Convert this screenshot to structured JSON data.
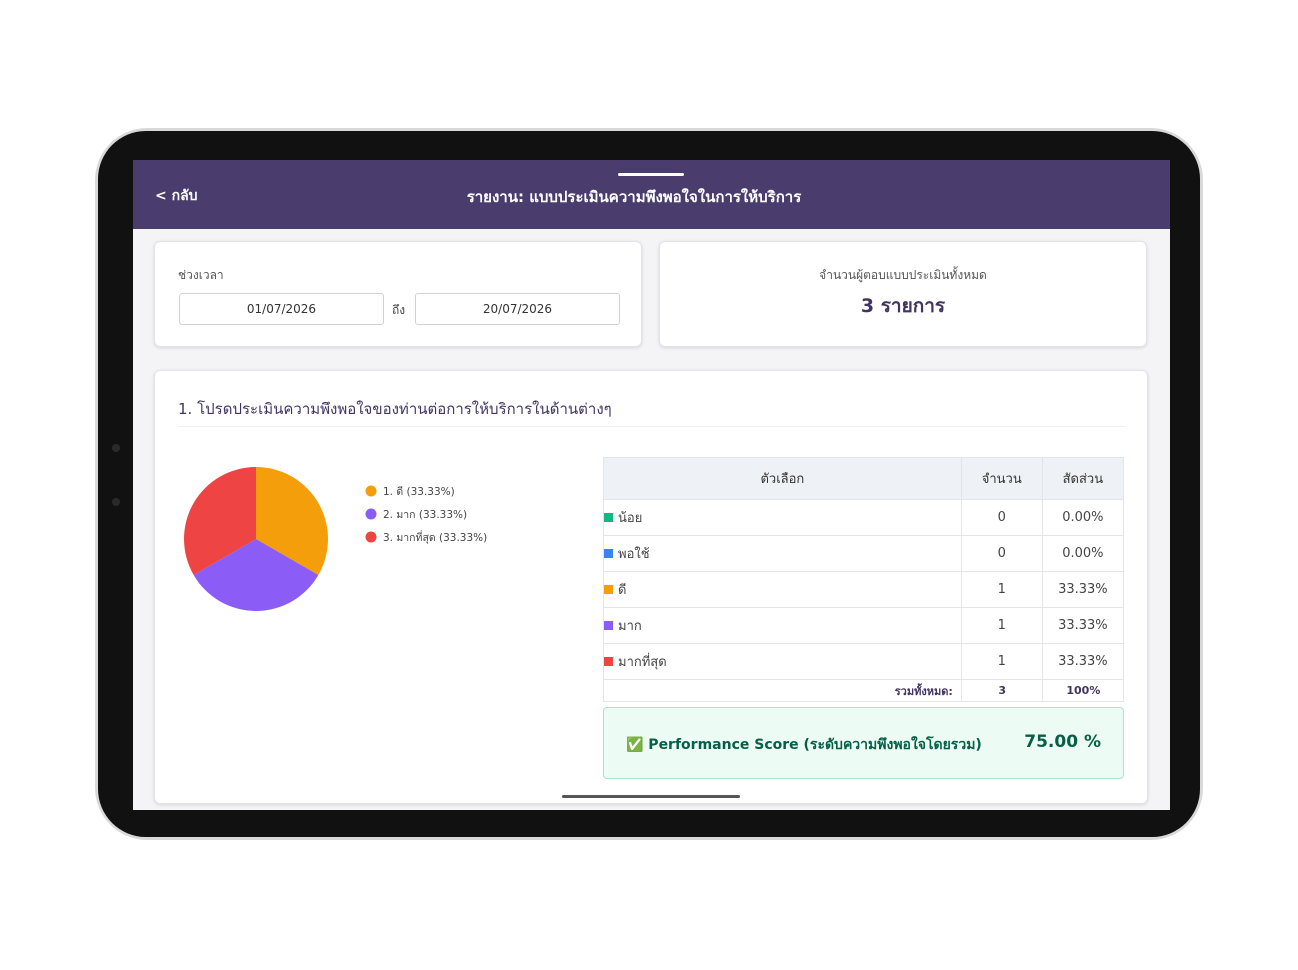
{
  "header": {
    "back": "< กลับ",
    "title": "รายงาน: แบบประเมินความพึงพอใจในการให้บริการ"
  },
  "period": {
    "label": "ช่วงเวลา",
    "from": "01/07/2026",
    "to_label": "ถึง",
    "to": "20/07/2026"
  },
  "respondents": {
    "label": "จำนวนผู้ตอบแบบประเมินทั้งหมด",
    "value": "3 รายการ"
  },
  "question": {
    "title": "1. โปรดประเมินความพึงพอใจของท่านต่อการให้บริการในด้านต่างๆ"
  },
  "chart_data": {
    "type": "pie",
    "categories": [
      "1. ดี (33.33%)",
      "2. มาก (33.33%)",
      "3. มากที่สุด (33.33%)"
    ],
    "values": [
      33.33,
      33.33,
      33.33
    ],
    "colors": [
      "#f59e0b",
      "#8b5cf6",
      "#ef4444"
    ]
  },
  "table": {
    "headers": [
      "ตัวเลือก",
      "จำนวน",
      "สัดส่วน"
    ],
    "rows": [
      [
        "น้อย",
        "0",
        "0.00%"
      ],
      [
        "พอใช้",
        "0",
        "0.00%"
      ],
      [
        "ดี",
        "1",
        "33.33%"
      ],
      [
        "มาก",
        "1",
        "33.33%"
      ],
      [
        "มากที่สุด",
        "1",
        "33.33%"
      ]
    ],
    "colors": [
      "#10b981",
      "#3b82f6",
      "#f59e0b",
      "#8b5cf6",
      "#ef4444"
    ],
    "total": [
      "รวมทั้งหมด:",
      "3",
      "100%"
    ]
  },
  "score": {
    "label": "✅ Performance Score (ระดับความพึงพอใจโดยรวม)",
    "value": "75.00 %"
  }
}
